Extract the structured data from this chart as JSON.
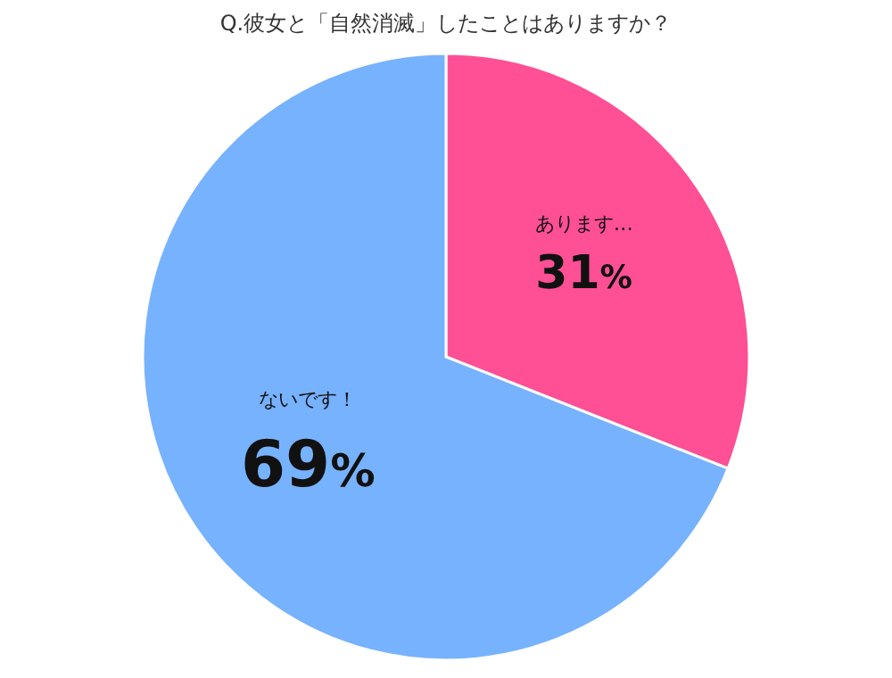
{
  "chart_data": {
    "type": "pie",
    "title": "Q.彼女と「自然消滅」したことはありますか？",
    "categories": [
      "あります…",
      "ないです！"
    ],
    "values": [
      31,
      69
    ],
    "value_labels": [
      "31%",
      "69%"
    ],
    "colors": [
      "#ff4f95",
      "#77b2fe"
    ]
  }
}
